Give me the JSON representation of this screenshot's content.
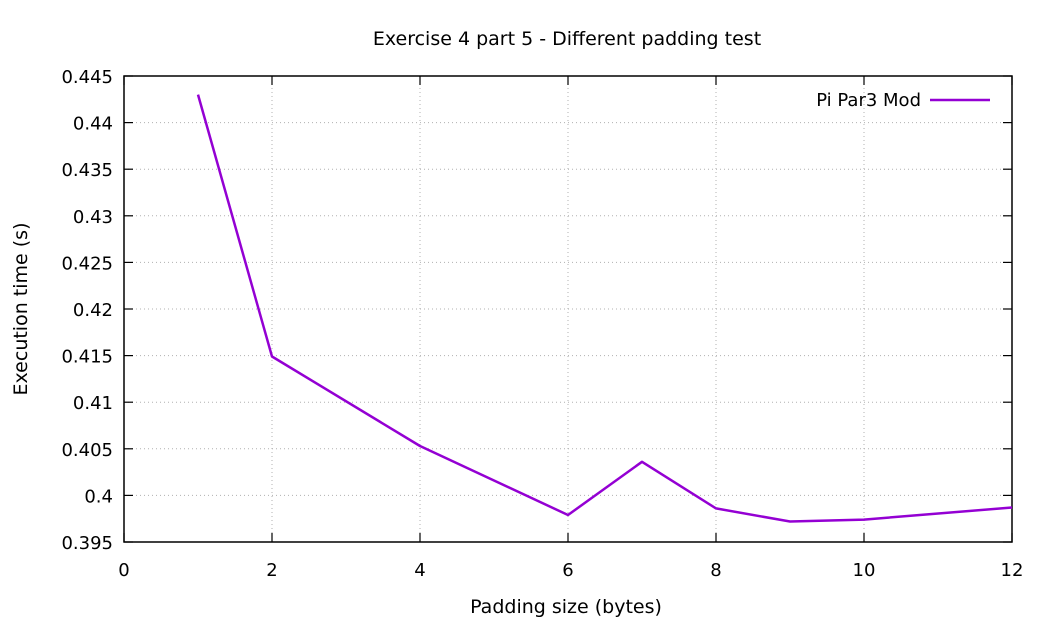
{
  "chart_data": {
    "type": "line",
    "title": "Exercise 4 part 5 - Different padding test",
    "xlabel": "Padding size (bytes)",
    "ylabel": "Execution time (s)",
    "xlim": [
      0,
      12
    ],
    "ylim": [
      0.395,
      0.445
    ],
    "xticks": [
      0,
      2,
      4,
      6,
      8,
      10,
      12
    ],
    "yticks": [
      0.395,
      0.4,
      0.405,
      0.41,
      0.415,
      0.42,
      0.425,
      0.43,
      0.435,
      0.44,
      0.445
    ],
    "xtick_labels": [
      "0",
      "2",
      "4",
      "6",
      "8",
      "10",
      "12"
    ],
    "ytick_labels": [
      "0.395",
      "0.4",
      "0.405",
      "0.41",
      "0.415",
      "0.42",
      "0.425",
      "0.43",
      "0.435",
      "0.44",
      "0.445"
    ],
    "grid": true,
    "legend_position": "top-right",
    "series": [
      {
        "name": "Pi Par3 Mod",
        "color": "#9400d3",
        "x": [
          1,
          2,
          4,
          6,
          7,
          8,
          9,
          10,
          12
        ],
        "y": [
          0.443,
          0.4149,
          0.4053,
          0.3979,
          0.4036,
          0.3986,
          0.3972,
          0.3974,
          0.3987
        ]
      }
    ]
  }
}
